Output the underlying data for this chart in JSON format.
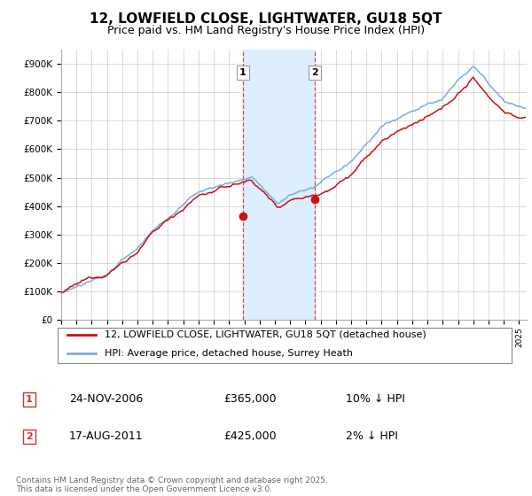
{
  "title": "12, LOWFIELD CLOSE, LIGHTWATER, GU18 5QT",
  "subtitle": "Price paid vs. HM Land Registry's House Price Index (HPI)",
  "ylim": [
    0,
    950000
  ],
  "yticks": [
    0,
    100000,
    200000,
    300000,
    400000,
    500000,
    600000,
    700000,
    800000,
    900000
  ],
  "ytick_labels": [
    "£0",
    "£100K",
    "£200K",
    "£300K",
    "£400K",
    "£500K",
    "£600K",
    "£700K",
    "£800K",
    "£900K"
  ],
  "hpi_color": "#7aaddc",
  "price_color": "#cc1111",
  "sale1_x": 2006.9,
  "sale1_price": 365000,
  "sale2_x": 2011.62,
  "sale2_price": 425000,
  "shaded_color": "#ddeeff",
  "vline_color": "#cc3333",
  "legend_label1": "12, LOWFIELD CLOSE, LIGHTWATER, GU18 5QT (detached house)",
  "legend_label2": "HPI: Average price, detached house, Surrey Heath",
  "footer": "Contains HM Land Registry data © Crown copyright and database right 2025.\nThis data is licensed under the Open Government Licence v3.0.",
  "background_color": "#ffffff",
  "grid_color": "#cccccc",
  "title_fontsize": 11,
  "subtitle_fontsize": 9,
  "tick_fontsize": 7.5,
  "legend_fontsize": 8,
  "table_fontsize": 9
}
